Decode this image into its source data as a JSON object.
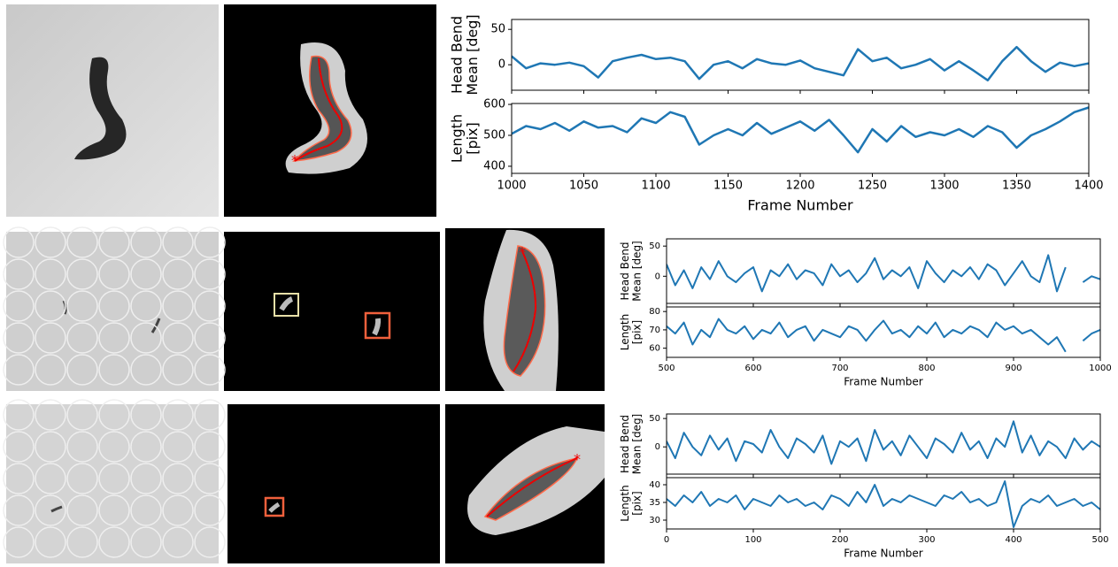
{
  "chart_data": [
    {
      "type": "line",
      "ylabel": [
        "Head Bend",
        "Mean [deg]"
      ],
      "color": "#1f77b4",
      "x": [
        1000,
        1010,
        1020,
        1030,
        1040,
        1050,
        1060,
        1070,
        1080,
        1090,
        1100,
        1110,
        1120,
        1130,
        1140,
        1150,
        1160,
        1170,
        1180,
        1190,
        1200,
        1210,
        1220,
        1230,
        1240,
        1250,
        1260,
        1270,
        1280,
        1290,
        1300,
        1310,
        1320,
        1330,
        1340,
        1350,
        1360,
        1370,
        1380,
        1390,
        1400
      ],
      "values": [
        12,
        -5,
        2,
        0,
        3,
        -2,
        -18,
        5,
        10,
        14,
        8,
        10,
        5,
        -20,
        0,
        5,
        -5,
        8,
        2,
        0,
        6,
        -5,
        -10,
        -15,
        22,
        5,
        10,
        -5,
        0,
        8,
        -8,
        5,
        -8,
        -22,
        5,
        25,
        5,
        -10,
        3,
        -2,
        2
      ],
      "xlim": [
        1000,
        1400
      ],
      "ylim": [
        -36,
        64
      ],
      "yticks": [
        0,
        50
      ]
    },
    {
      "type": "line",
      "ylabel": [
        "Length",
        "[pix]"
      ],
      "xlabel": "Frame Number",
      "color": "#1f77b4",
      "x": [
        1000,
        1010,
        1020,
        1030,
        1040,
        1050,
        1060,
        1070,
        1080,
        1090,
        1100,
        1110,
        1120,
        1130,
        1140,
        1150,
        1160,
        1170,
        1180,
        1190,
        1200,
        1210,
        1220,
        1230,
        1240,
        1250,
        1260,
        1270,
        1280,
        1290,
        1300,
        1310,
        1320,
        1330,
        1340,
        1350,
        1360,
        1370,
        1380,
        1390,
        1400
      ],
      "values": [
        505,
        530,
        520,
        540,
        515,
        545,
        525,
        530,
        510,
        555,
        540,
        575,
        560,
        470,
        500,
        520,
        500,
        540,
        505,
        525,
        545,
        515,
        550,
        500,
        445,
        520,
        480,
        530,
        495,
        510,
        500,
        520,
        495,
        530,
        510,
        460,
        500,
        520,
        545,
        575,
        590
      ],
      "xlim": [
        1000,
        1400
      ],
      "ylim": [
        377,
        603
      ],
      "yticks": [
        400,
        500,
        600
      ],
      "xticks": [
        1000,
        1050,
        1100,
        1150,
        1200,
        1250,
        1300,
        1350,
        1400
      ]
    },
    {
      "type": "line",
      "ylabel": [
        "Head Bend",
        "Mean [deg]"
      ],
      "color": "#1f77b4",
      "x": [
        500,
        510,
        520,
        530,
        540,
        550,
        560,
        570,
        580,
        590,
        600,
        610,
        620,
        630,
        640,
        650,
        660,
        670,
        680,
        690,
        700,
        710,
        720,
        730,
        740,
        750,
        760,
        770,
        780,
        790,
        800,
        810,
        820,
        830,
        840,
        850,
        860,
        870,
        880,
        890,
        900,
        910,
        920,
        930,
        940,
        950,
        960,
        970,
        980,
        990,
        1000
      ],
      "values": [
        20,
        -15,
        10,
        -20,
        15,
        -5,
        25,
        0,
        -10,
        5,
        15,
        -25,
        10,
        0,
        20,
        -5,
        10,
        5,
        -15,
        20,
        0,
        10,
        -10,
        5,
        30,
        -5,
        10,
        0,
        15,
        -20,
        25,
        5,
        -10,
        10,
        0,
        15,
        -5,
        20,
        10,
        -15,
        5,
        25,
        0,
        -10,
        35,
        -25,
        15,
        null,
        -10,
        0,
        -5
      ],
      "xlim": [
        500,
        1000
      ],
      "ylim": [
        -45,
        62
      ],
      "yticks": [
        0,
        50
      ]
    },
    {
      "type": "line",
      "ylabel": [
        "Length",
        "[pix]"
      ],
      "xlabel": "Frame Number",
      "color": "#1f77b4",
      "x": [
        500,
        510,
        520,
        530,
        540,
        550,
        560,
        570,
        580,
        590,
        600,
        610,
        620,
        630,
        640,
        650,
        660,
        670,
        680,
        690,
        700,
        710,
        720,
        730,
        740,
        750,
        760,
        770,
        780,
        790,
        800,
        810,
        820,
        830,
        840,
        850,
        860,
        870,
        880,
        890,
        900,
        910,
        920,
        930,
        940,
        950,
        960,
        970,
        980,
        990,
        1000
      ],
      "values": [
        72,
        68,
        74,
        62,
        70,
        66,
        76,
        70,
        68,
        72,
        65,
        70,
        68,
        74,
        66,
        70,
        72,
        64,
        70,
        68,
        66,
        72,
        70,
        64,
        70,
        75,
        68,
        70,
        66,
        72,
        68,
        74,
        66,
        70,
        68,
        72,
        70,
        66,
        74,
        70,
        72,
        68,
        70,
        66,
        62,
        66,
        58,
        null,
        64,
        68,
        70
      ],
      "xlim": [
        500,
        1000
      ],
      "ylim": [
        55,
        82.5
      ],
      "yticks": [
        60,
        70,
        80
      ],
      "xticks": [
        500,
        600,
        700,
        800,
        900,
        1000
      ]
    },
    {
      "type": "line",
      "ylabel": [
        "Head Bend",
        "Mean [deg]"
      ],
      "color": "#1f77b4",
      "x": [
        0,
        10,
        20,
        30,
        40,
        50,
        60,
        70,
        80,
        90,
        100,
        110,
        120,
        130,
        140,
        150,
        160,
        170,
        180,
        190,
        200,
        210,
        220,
        230,
        240,
        250,
        260,
        270,
        280,
        290,
        300,
        310,
        320,
        330,
        340,
        350,
        360,
        370,
        380,
        390,
        400,
        410,
        420,
        430,
        440,
        450,
        460,
        470,
        480,
        490,
        500
      ],
      "values": [
        10,
        -20,
        25,
        0,
        -15,
        20,
        -5,
        15,
        -25,
        10,
        5,
        -10,
        30,
        0,
        -20,
        15,
        5,
        -10,
        20,
        -30,
        10,
        0,
        15,
        -25,
        30,
        -5,
        10,
        -15,
        20,
        0,
        -20,
        15,
        5,
        -10,
        25,
        -5,
        10,
        -20,
        15,
        0,
        45,
        -10,
        20,
        -15,
        10,
        0,
        -20,
        15,
        -5,
        10,
        0
      ],
      "xlim": [
        0,
        500
      ],
      "ylim": [
        -48,
        58
      ],
      "yticks": [
        0,
        50
      ]
    },
    {
      "type": "line",
      "ylabel": [
        "Length",
        "[pix]"
      ],
      "xlabel": "Frame Number",
      "color": "#1f77b4",
      "x": [
        0,
        10,
        20,
        30,
        40,
        50,
        60,
        70,
        80,
        90,
        100,
        110,
        120,
        130,
        140,
        150,
        160,
        170,
        180,
        190,
        200,
        210,
        220,
        230,
        240,
        250,
        260,
        270,
        280,
        290,
        300,
        310,
        320,
        330,
        340,
        350,
        360,
        370,
        380,
        390,
        400,
        410,
        420,
        430,
        440,
        450,
        460,
        470,
        480,
        490,
        500
      ],
      "values": [
        36,
        34,
        37,
        35,
        38,
        34,
        36,
        35,
        37,
        33,
        36,
        35,
        34,
        37,
        35,
        36,
        34,
        35,
        33,
        37,
        36,
        34,
        38,
        35,
        40,
        34,
        36,
        35,
        37,
        36,
        35,
        34,
        37,
        36,
        38,
        35,
        36,
        34,
        35,
        41,
        28,
        34,
        36,
        35,
        37,
        34,
        35,
        36,
        34,
        35,
        33
      ],
      "xlim": [
        0,
        500
      ],
      "ylim": [
        27.5,
        42
      ],
      "yticks": [
        30,
        35,
        40
      ],
      "xticks": [
        0,
        100,
        200,
        300,
        400,
        500
      ]
    }
  ]
}
